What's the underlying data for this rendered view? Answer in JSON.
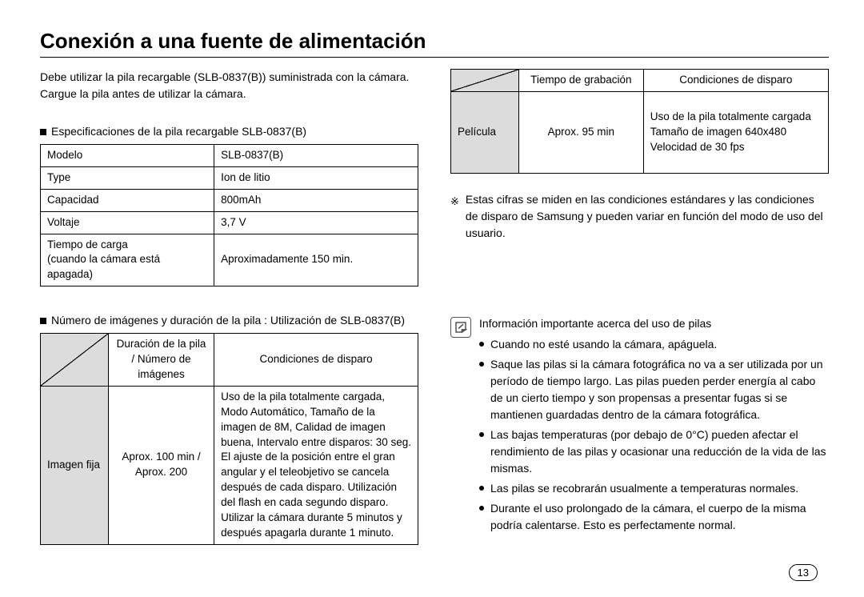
{
  "title": "Conexión a una fuente de alimentación",
  "intro": "Debe utilizar la pila recargable (SLB-0837(B)) suministrada con la cámara. Cargue la pila antes de utilizar la cámara.",
  "spec_label": "Especificaciones de la pila recargable SLB-0837(B)",
  "spec_table": {
    "rows": [
      {
        "k": "Modelo",
        "v": "SLB-0837(B)"
      },
      {
        "k": "Type",
        "v": "Ion de litio"
      },
      {
        "k": "Capacidad",
        "v": "800mAh"
      },
      {
        "k": "Voltaje",
        "v": "3,7 V"
      },
      {
        "k": "Tiempo de carga\n(cuando la cámara está apagada)",
        "v": "Aproximadamente 150 min."
      }
    ]
  },
  "usage_label": "Número de imágenes y duración de la pila : Utilización de SLB-0837(B)",
  "usage_table": {
    "head2": "Duración de la pila / Número de imágenes",
    "head3": "Condiciones de disparo",
    "row_label": "Imagen fija",
    "row_val": "Aprox. 100 min / Aprox. 200",
    "row_cond": "Uso de la pila totalmente cargada, Modo Automático, Tamaño de la imagen de 8M, Calidad de imagen buena, Intervalo entre disparos: 30 seg.\nEl ajuste de la posición entre el gran angular y el teleobjetivo se cancela después de cada disparo. Utilización del flash en cada segundo disparo.\nUtilizar la cámara durante 5 minutos y después apagarla durante 1 minuto."
  },
  "movie_table": {
    "head2": "Tiempo de grabación",
    "head3": "Condiciones de disparo",
    "row_label": "Película",
    "row_val": "Aprox. 95 min",
    "row_cond": "Uso de la pila totalmente cargada\nTamaño de imagen 640x480\nVelocidad de 30 fps"
  },
  "footnote": "Estas cifras se miden en las condiciones estándares y las condiciones de disparo de Samsung y pueden variar en función del modo de uso del usuario.",
  "info_heading": "Información importante acerca del uso de pilas",
  "info_bullets": [
    "Cuando no esté usando la cámara, apáguela.",
    "Saque las pilas si la cámara fotográfica no va a ser utilizada por un período de tiempo largo. Las pilas pueden perder energía al cabo de un cierto tiempo y son propensas a presentar fugas si se mantienen guardadas dentro de la cámara fotográfica.",
    "Las bajas temperaturas (por debajo de 0°C) pueden afectar el rendimiento de las pilas y ocasionar una reducción de la vida de las mismas.",
    "Las pilas se recobrarán usualmente a temperaturas normales.",
    "Durante el uso prolongado de la cámara, el cuerpo de la misma podría calentarse. Esto es perfectamente normal."
  ],
  "page_number": "13"
}
